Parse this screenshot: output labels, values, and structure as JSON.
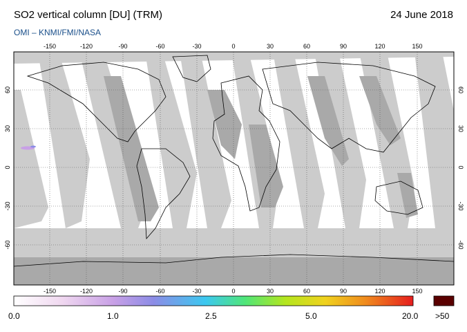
{
  "header": {
    "title": "SO2 vertical column [DU] (TRM)",
    "date": "24 June 2018",
    "credit": "OMI  –  KNMI/FMI/NASA"
  },
  "map": {
    "projection": "equirectangular",
    "lon_ticks": [
      "-150",
      "-120",
      "-90",
      "-60",
      "-30",
      "0",
      "30",
      "60",
      "90",
      "120",
      "150"
    ],
    "lat_ticks": [
      "60",
      "30",
      "0",
      "-30",
      "-60"
    ],
    "no_data_color": "#cccccc",
    "swath_shade_color": "#a9a9a9",
    "land_outline_color": "#000000"
  },
  "colorbar": {
    "labels": [
      "0.0",
      "1.0",
      "2.5",
      "5.0",
      "20.0"
    ],
    "overflow_label": ">50",
    "overflow_color": "#5a0000",
    "gradient_stops": [
      "#ffffff",
      "#f0d8f0",
      "#c8a0e6",
      "#8c8ce6",
      "#3cc8f0",
      "#50e678",
      "#b4e61e",
      "#f0d21e",
      "#f08c1e",
      "#e61e1e"
    ]
  }
}
